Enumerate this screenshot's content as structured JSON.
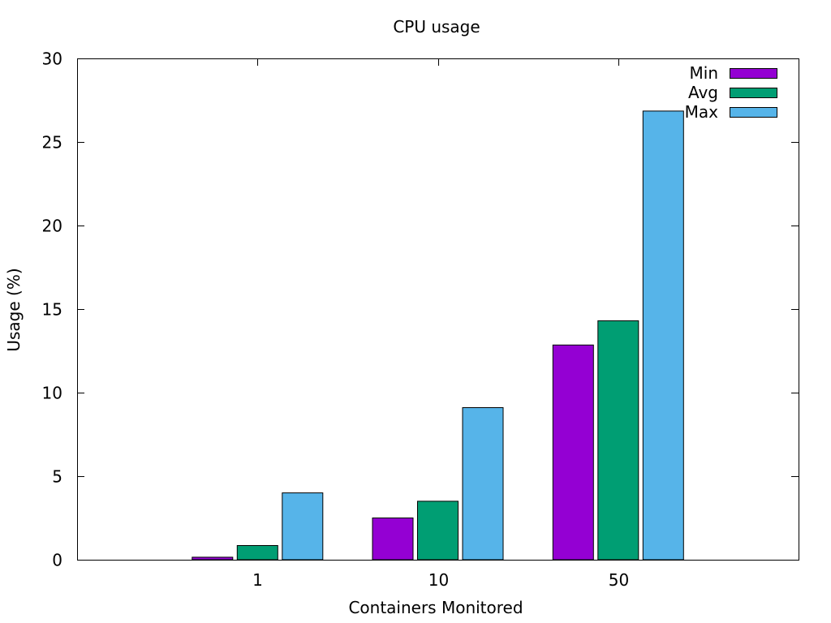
{
  "chart_data": {
    "type": "bar",
    "title": "CPU usage",
    "xlabel": "Containers Monitored",
    "ylabel": "Usage (%)",
    "categories": [
      "1",
      "10",
      "50"
    ],
    "ylim": [
      0,
      30
    ],
    "yticks": [
      0,
      5,
      10,
      15,
      20,
      25,
      30
    ],
    "grid": false,
    "legend_position": "top-right",
    "series": [
      {
        "name": "Min",
        "color": "#9400d3",
        "values": [
          0.15,
          2.5,
          12.85
        ]
      },
      {
        "name": "Avg",
        "color": "#009e73",
        "values": [
          0.85,
          3.5,
          14.3
        ]
      },
      {
        "name": "Max",
        "color": "#56b4e9",
        "values": [
          4.0,
          9.1,
          26.85
        ]
      }
    ]
  }
}
